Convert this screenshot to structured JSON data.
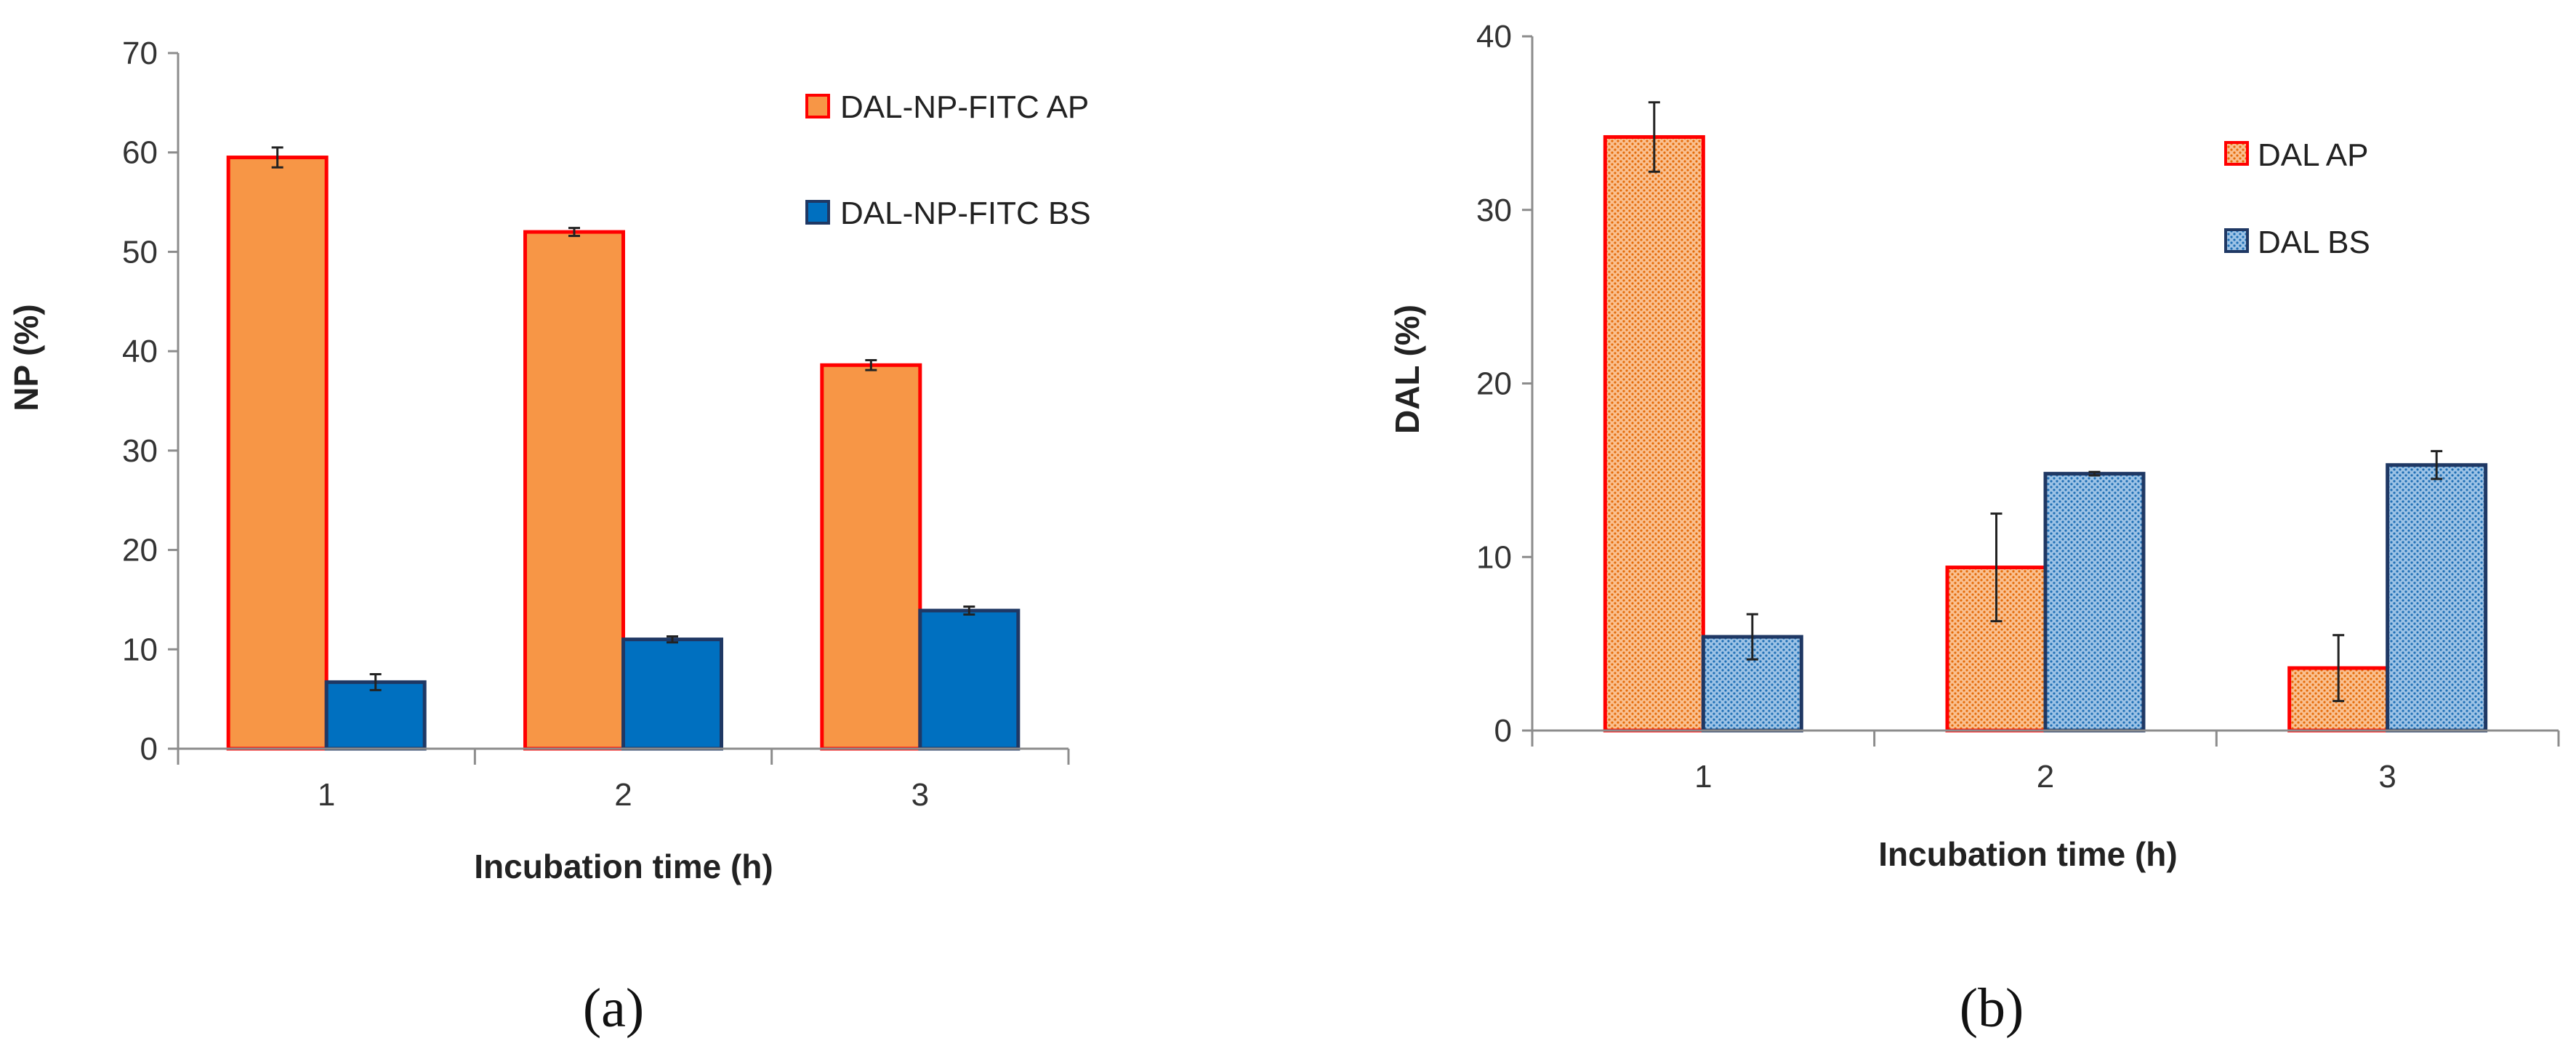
{
  "chart_data": [
    {
      "type": "bar",
      "panel_label": "(a)",
      "categories": [
        "1",
        "2",
        "3"
      ],
      "xlabel": "Incubation time (h)",
      "ylabel": "NP  (%)",
      "ylim": [
        0,
        70
      ],
      "yticks": [
        "0",
        "10",
        "20",
        "30",
        "40",
        "50",
        "60",
        "70"
      ],
      "grid": false,
      "legend_position": "top-right",
      "series": [
        {
          "name": "DAL-NP-FITC AP",
          "values": [
            59.5,
            52.0,
            38.6
          ],
          "errors": [
            1.0,
            0.4,
            0.5
          ],
          "fill": "#F79646",
          "stroke": "#FF0000",
          "pattern": "solid"
        },
        {
          "name": "DAL-NP-FITC BS",
          "values": [
            6.7,
            11.0,
            13.9
          ],
          "errors": [
            0.8,
            0.3,
            0.4
          ],
          "fill": "#0070C0",
          "stroke": "#1F3864",
          "pattern": "solid"
        }
      ]
    },
    {
      "type": "bar",
      "panel_label": "(b)",
      "categories": [
        "1",
        "2",
        "3"
      ],
      "xlabel": "Incubation time (h)",
      "ylabel": "DAL (%)",
      "ylim": [
        0,
        40
      ],
      "yticks": [
        "0",
        "10",
        "20",
        "30",
        "40"
      ],
      "grid": false,
      "legend_position": "top-right",
      "series": [
        {
          "name": "DAL AP",
          "values": [
            34.2,
            9.4,
            3.6
          ],
          "errors": [
            2.0,
            3.1,
            1.9
          ],
          "fill": "#F79646",
          "stroke": "#FF0000",
          "pattern": "dotted"
        },
        {
          "name": "DAL BS",
          "values": [
            5.4,
            14.8,
            15.3
          ],
          "errors": [
            1.3,
            0.1,
            0.8
          ],
          "fill": "#5B9BD5",
          "stroke": "#1F3864",
          "pattern": "dotted"
        }
      ]
    }
  ]
}
